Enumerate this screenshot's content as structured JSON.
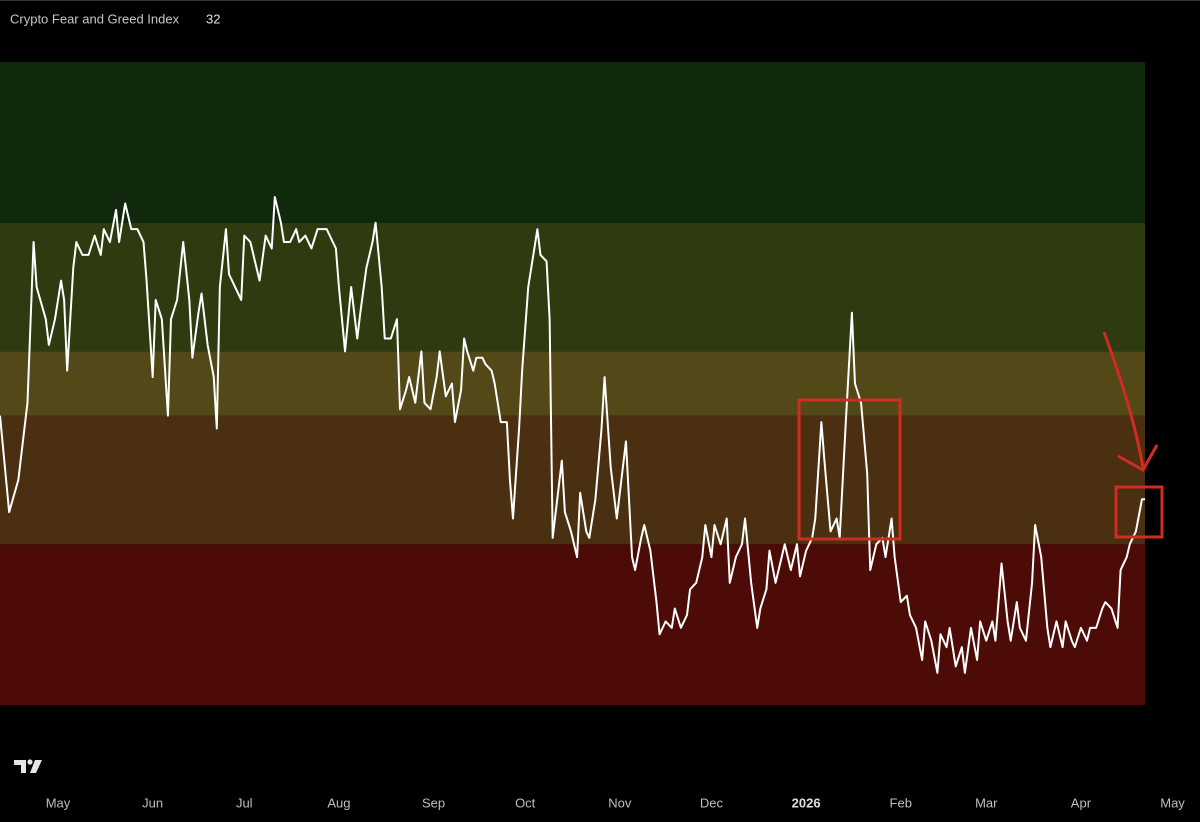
{
  "chart_data": {
    "type": "line",
    "title": "Crypto Fear and Greed Index",
    "color": "#ffffff",
    "x": [
      0,
      3,
      6,
      9,
      11,
      12,
      15,
      16,
      18,
      20,
      21,
      22,
      24,
      25,
      27,
      29,
      31,
      33,
      34,
      36,
      38,
      39,
      41,
      43,
      45,
      47,
      48,
      50,
      51,
      53,
      55,
      56,
      58,
      60,
      62,
      63,
      65,
      66,
      68,
      70,
      71,
      72,
      74,
      75,
      77,
      79,
      80,
      82,
      84,
      85,
      87,
      89,
      90,
      92,
      93,
      95,
      97,
      98,
      100,
      102,
      104,
      107,
      109,
      110,
      111,
      113,
      115,
      117,
      118,
      120,
      122,
      123,
      125,
      126,
      128,
      130,
      131,
      133,
      134,
      136,
      138,
      139,
      141,
      143,
      144,
      146,
      148,
      149,
      151,
      152,
      153,
      155,
      156,
      158,
      159,
      161,
      162,
      164,
      166,
      167,
      168,
      170,
      171,
      173,
      175,
      176,
      177,
      179,
      180,
      181,
      184,
      185,
      187,
      189,
      190,
      192,
      193,
      195,
      197,
      198,
      200,
      202,
      203,
      205,
      207,
      208,
      210,
      211,
      213,
      215,
      216,
      218,
      220,
      221,
      223,
      225,
      226,
      228,
      230,
      231,
      233,
      234,
      236,
      238,
      239,
      241,
      243,
      244,
      246,
      248,
      249,
      251,
      252,
      254,
      256,
      257,
      259,
      261,
      262,
      264,
      266,
      267,
      269,
      270,
      272,
      274,
      275,
      277,
      279,
      280,
      282,
      284,
      285,
      287,
      289,
      290,
      292,
      293,
      295,
      297,
      298,
      300,
      302,
      303,
      305,
      307,
      308,
      310,
      311,
      313,
      315,
      316,
      318,
      320,
      321,
      323,
      325,
      326,
      328,
      330,
      331,
      333,
      334,
      336,
      338,
      339,
      341,
      343,
      344,
      346,
      348,
      349,
      351,
      352,
      354,
      356,
      357,
      359,
      361,
      362,
      364,
      366,
      367,
      369,
      370,
      372,
      374,
      375
    ],
    "values": [
      45,
      30,
      35,
      47,
      72,
      65,
      60,
      56,
      60,
      66,
      63,
      52,
      68,
      72,
      70,
      70,
      73,
      70,
      74,
      72,
      77,
      72,
      78,
      74,
      74,
      72,
      66,
      51,
      63,
      60,
      45,
      60,
      63,
      72,
      63,
      54,
      61,
      64,
      56,
      51,
      43,
      65,
      74,
      67,
      65,
      63,
      73,
      72,
      68,
      66,
      73,
      71,
      79,
      75,
      72,
      72,
      74,
      72,
      73,
      71,
      74,
      74,
      72,
      71,
      65,
      55,
      65,
      57,
      61,
      68,
      72,
      75,
      65,
      57,
      57,
      60,
      46,
      49,
      51,
      47,
      55,
      47,
      46,
      51,
      55,
      48,
      50,
      44,
      49,
      57,
      55,
      52,
      54,
      54,
      53,
      52,
      50,
      44,
      44,
      35,
      29,
      43,
      52,
      65,
      71,
      74,
      70,
      69,
      60,
      26,
      38,
      30,
      27,
      23,
      33,
      27,
      26,
      32,
      43,
      51,
      37,
      29,
      33,
      41,
      23,
      21,
      26,
      28,
      24,
      16,
      11,
      13,
      12,
      15,
      12,
      14,
      18,
      19,
      23,
      28,
      23,
      28,
      25,
      29,
      19,
      23,
      25,
      29,
      19,
      12,
      15,
      18,
      24,
      19,
      23,
      25,
      21,
      25,
      20,
      24,
      26,
      29,
      44,
      38,
      27,
      29,
      26,
      44,
      61,
      50,
      47,
      36,
      21,
      25,
      26,
      23,
      29,
      23,
      16,
      17,
      14,
      12,
      7,
      13,
      10,
      5,
      11,
      9,
      12,
      6,
      9,
      5,
      12,
      7,
      13,
      10,
      13,
      10,
      22,
      13,
      10,
      16,
      12,
      10,
      19,
      28,
      23,
      12,
      9,
      13,
      9,
      13,
      10,
      9,
      12,
      10,
      12,
      12,
      15,
      16,
      15,
      12,
      21,
      23,
      25,
      27,
      32,
      32
    ],
    "xlim": [
      0,
      393
    ],
    "ylim": [
      0,
      100
    ],
    "xticks": [
      {
        "value": 19,
        "label": "May"
      },
      {
        "value": 50,
        "label": "Jun"
      },
      {
        "value": 80,
        "label": "Jul"
      },
      {
        "value": 111,
        "label": "Aug"
      },
      {
        "value": 142,
        "label": "Sep"
      },
      {
        "value": 172,
        "label": "Oct"
      },
      {
        "value": 203,
        "label": "Nov"
      },
      {
        "value": 233,
        "label": "Dec"
      },
      {
        "value": 264,
        "label": "2026"
      },
      {
        "value": 295,
        "label": "Feb"
      },
      {
        "value": 323,
        "label": "Mar"
      },
      {
        "value": 354,
        "label": "Apr"
      },
      {
        "value": 384,
        "label": "May"
      }
    ],
    "zones": [
      {
        "from": 0,
        "to": 25,
        "color": "#4c0b07"
      },
      {
        "from": 25,
        "to": 45,
        "color": "#4a3010"
      },
      {
        "from": 45,
        "to": 55,
        "color": "#534818"
      },
      {
        "from": 55,
        "to": 75,
        "color": "#2e3a10"
      },
      {
        "from": 75,
        "to": 100,
        "color": "#10290c"
      }
    ]
  }
}
